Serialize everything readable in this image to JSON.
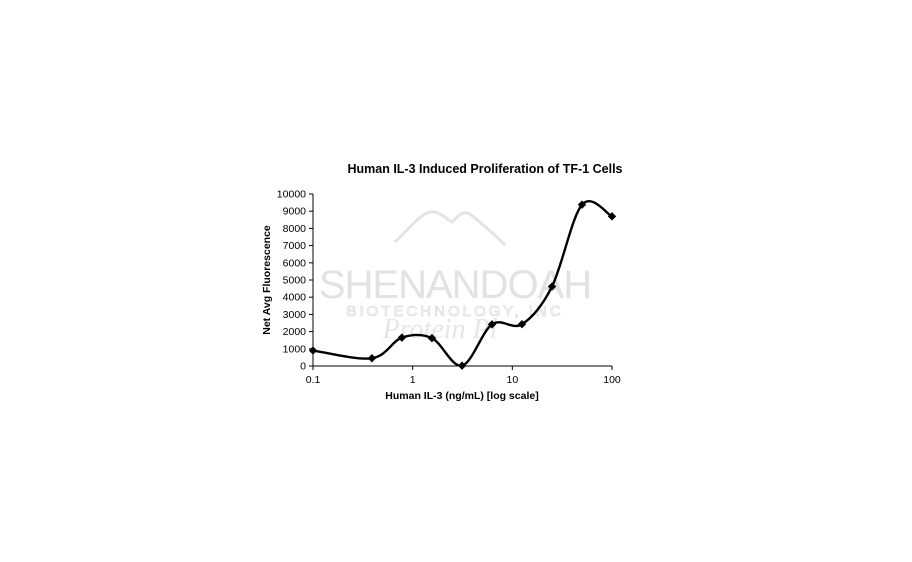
{
  "watermark": {
    "line1": "SHENANDOAH",
    "line2": "BIOTECHNOLOGY, INC",
    "line3": "Protein Pl"
  },
  "chart_data": {
    "type": "line",
    "title": "Human IL-3 Induced Proliferation of TF-1 Cells",
    "xlabel": "Human IL-3 (ng/mL) [log scale]",
    "ylabel": "Net Avg Fluorescence",
    "x_scale": "log",
    "xlim": [
      0.1,
      100
    ],
    "ylim": [
      0,
      10000
    ],
    "x_ticks": [
      0.1,
      1,
      10,
      100
    ],
    "x_tick_labels": [
      "0.1",
      "1",
      "10",
      "100"
    ],
    "y_ticks": [
      0,
      1000,
      2000,
      3000,
      4000,
      5000,
      6000,
      7000,
      8000,
      9000,
      10000
    ],
    "y_tick_labels": [
      "0",
      "1000",
      "2000",
      "3000",
      "4000",
      "5000",
      "6000",
      "7000",
      "8000",
      "9000",
      "10000"
    ],
    "grid": false,
    "legend": "none",
    "line_style": "smoothed",
    "marker": "diamond",
    "series": [
      {
        "x": [
          0.1,
          0.39,
          0.78,
          1.56,
          3.13,
          6.25,
          12.5,
          25,
          50,
          100
        ],
        "y": [
          900,
          450,
          1650,
          1620,
          20,
          2420,
          2430,
          4620,
          9380,
          8700
        ],
        "color": "#000000"
      }
    ]
  }
}
